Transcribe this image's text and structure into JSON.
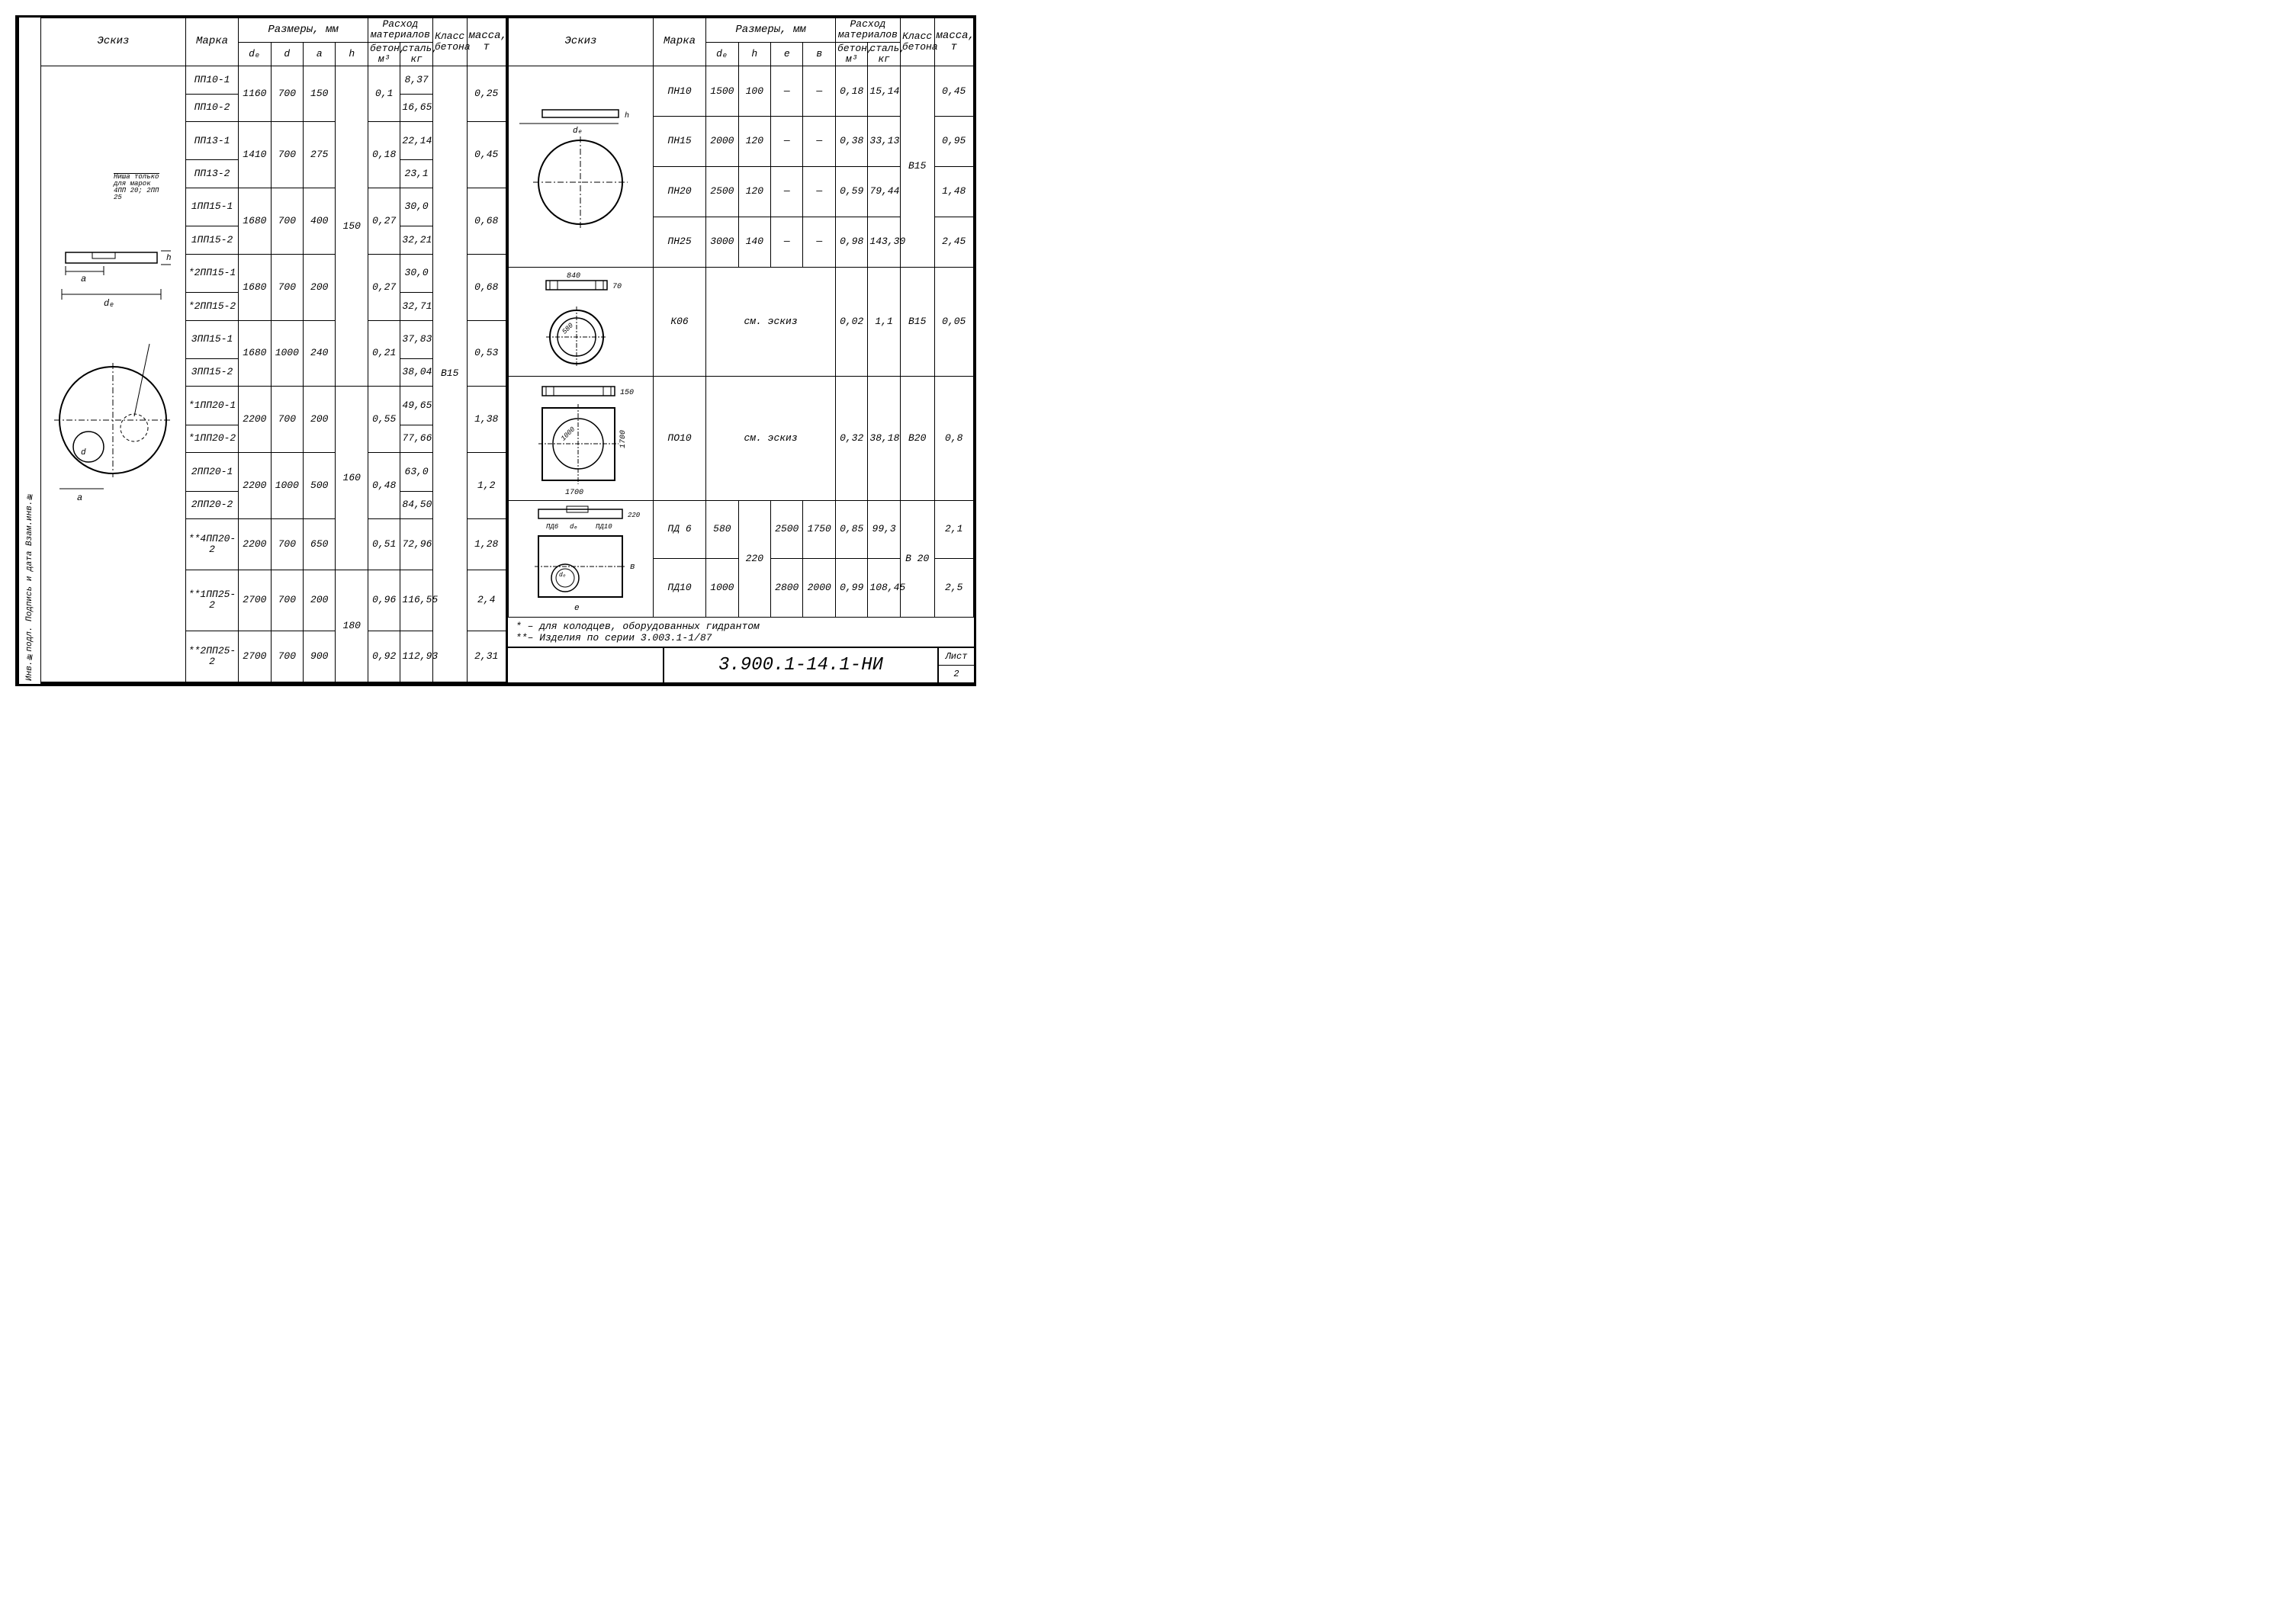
{
  "side_stamp": "Инв.№подл. Подпись и дата Взам.инв.№",
  "headers": {
    "eskiz": "Эскиз",
    "marka": "Марка",
    "razmery": "Размеры, мм",
    "rashod": "Расход материалов",
    "klass": "Класс бетона",
    "massa": "масса, т",
    "de": "dₑ",
    "d": "d",
    "a": "a",
    "h": "h",
    "e": "e",
    "b": "в",
    "beton": "бетон, м³",
    "stal": "сталь, кг"
  },
  "left": {
    "note_label": "Ниша только для марок 4ПП 20; 2ПП 25",
    "klass_all": "В15",
    "rows": [
      {
        "marka": "ПП10-1",
        "de": "1160",
        "d": "700",
        "a": "150",
        "h": "",
        "beton": "0,1",
        "stal": "8,37",
        "massa": "0,25"
      },
      {
        "marka": "ПП10-2",
        "de": "",
        "d": "",
        "a": "",
        "h": "",
        "beton": "",
        "stal": "16,65",
        "massa": ""
      },
      {
        "marka": "ПП13-1",
        "de": "1410",
        "d": "700",
        "a": "275",
        "h": "",
        "beton": "0,18",
        "stal": "22,14",
        "massa": "0,45"
      },
      {
        "marka": "ПП13-2",
        "de": "",
        "d": "",
        "a": "",
        "h": "",
        "beton": "",
        "stal": "23,1",
        "massa": ""
      },
      {
        "marka": "1ПП15-1",
        "de": "1680",
        "d": "700",
        "a": "400",
        "h": "150",
        "beton": "0,27",
        "stal": "30,0",
        "massa": "0,68"
      },
      {
        "marka": "1ПП15-2",
        "de": "",
        "d": "",
        "a": "",
        "h": "",
        "beton": "",
        "stal": "32,21",
        "massa": ""
      },
      {
        "marka": "*2ПП15-1",
        "de": "1680",
        "d": "700",
        "a": "200",
        "h": "",
        "beton": "0,27",
        "stal": "30,0",
        "massa": "0,68"
      },
      {
        "marka": "*2ПП15-2",
        "de": "",
        "d": "",
        "a": "",
        "h": "",
        "beton": "",
        "stal": "32,71",
        "massa": ""
      },
      {
        "marka": "3ПП15-1",
        "de": "1680",
        "d": "1000",
        "a": "240",
        "h": "",
        "beton": "0,21",
        "stal": "37,83",
        "massa": "0,53"
      },
      {
        "marka": "3ПП15-2",
        "de": "",
        "d": "",
        "a": "",
        "h": "",
        "beton": "",
        "stal": "38,04",
        "massa": ""
      },
      {
        "marka": "*1ПП20-1",
        "de": "2200",
        "d": "700",
        "a": "200",
        "h": "",
        "beton": "0,55",
        "stal": "49,65",
        "massa": "1,38"
      },
      {
        "marka": "*1ПП20-2",
        "de": "",
        "d": "",
        "a": "",
        "h": "160",
        "beton": "",
        "stal": "77,66",
        "massa": ""
      },
      {
        "marka": "2ПП20-1",
        "de": "2200",
        "d": "1000",
        "a": "500",
        "h": "",
        "beton": "0,48",
        "stal": "63,0",
        "massa": "1,2"
      },
      {
        "marka": "2ПП20-2",
        "de": "",
        "d": "",
        "a": "",
        "h": "",
        "beton": "",
        "stal": "84,50",
        "massa": ""
      },
      {
        "marka": "**4ПП20-2",
        "de": "2200",
        "d": "700",
        "a": "650",
        "h": "",
        "beton": "0,51",
        "stal": "72,96",
        "massa": "1,28"
      },
      {
        "marka": "**1ПП25-2",
        "de": "2700",
        "d": "700",
        "a": "200",
        "h": "180",
        "beton": "0,96",
        "stal": "116,55",
        "massa": "2,4"
      },
      {
        "marka": "**2ПП25-2",
        "de": "2700",
        "d": "700",
        "a": "900",
        "h": "",
        "beton": "0,92",
        "stal": "112,93",
        "massa": "2,31"
      }
    ]
  },
  "right": {
    "rows_pn": [
      {
        "marka": "ПН10",
        "de": "1500",
        "h": "100",
        "e": "—",
        "b": "—",
        "beton": "0,18",
        "stal": "15,14",
        "klass": "",
        "massa": "0,45"
      },
      {
        "marka": "ПН15",
        "de": "2000",
        "h": "120",
        "e": "—",
        "b": "—",
        "beton": "0,38",
        "stal": "33,13",
        "klass": "В15",
        "massa": "0,95"
      },
      {
        "marka": "ПН20",
        "de": "2500",
        "h": "120",
        "e": "—",
        "b": "—",
        "beton": "0,59",
        "stal": "79,44",
        "klass": "",
        "massa": "1,48"
      },
      {
        "marka": "ПН25",
        "de": "3000",
        "h": "140",
        "e": "—",
        "b": "—",
        "beton": "0,98",
        "stal": "143,30",
        "klass": "",
        "massa": "2,45"
      }
    ],
    "row_k06": {
      "marka": "К06",
      "dims": "см. эскиз",
      "beton": "0,02",
      "stal": "1,1",
      "klass": "В15",
      "massa": "0,05"
    },
    "row_p010": {
      "marka": "ПО10",
      "dims": "см. эскиз",
      "beton": "0,32",
      "stal": "38,18",
      "klass": "В20",
      "massa": "0,8"
    },
    "rows_pd": [
      {
        "marka": "ПД 6",
        "de": "580",
        "h": "220",
        "e": "2500",
        "b": "1750",
        "beton": "0,85",
        "stal": "99,3",
        "klass": "В 20",
        "massa": "2,1"
      },
      {
        "marka": "ПД10",
        "de": "1000",
        "h": "",
        "e": "2800",
        "b": "2000",
        "beton": "0,99",
        "stal": "108,45",
        "klass": "",
        "massa": "2,5"
      }
    ],
    "dim_labels": {
      "k06_w": "840",
      "k06_h": "70",
      "k06_d": "580",
      "p010_h": "150",
      "p010_d": "1000",
      "p010_sq": "1700",
      "pd_h": "220"
    }
  },
  "footnotes": {
    "l1": "* – для колодцев, оборудованных гидрантом",
    "l2": "**– Изделия по серии 3.003.1-1/87"
  },
  "title_block": {
    "number": "3.900.1-14.1-НИ",
    "sheet_label": "Лист",
    "sheet_num": "2"
  },
  "colors": {
    "line": "#000000",
    "bg": "#ffffff"
  }
}
